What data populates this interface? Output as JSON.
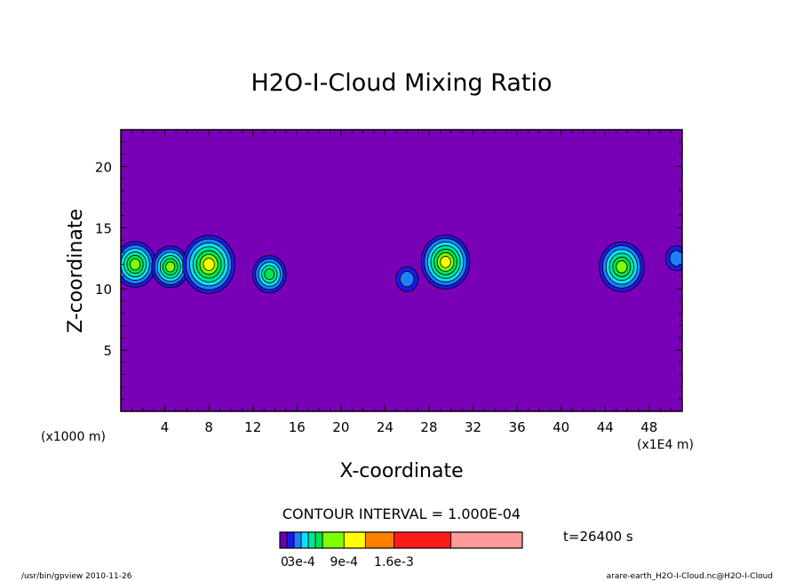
{
  "chart_data": {
    "type": "heatmap",
    "title": "H2O-I-Cloud Mixing Ratio",
    "xlabel": "X-coordinate",
    "ylabel": "Z-coordinate",
    "x_unit_left": "(x1000 m)",
    "x_unit_right": "(x1E4 m)",
    "xlim": [
      0,
      51
    ],
    "ylim": [
      0,
      23
    ],
    "x_ticks": [
      4,
      8,
      12,
      16,
      20,
      24,
      28,
      32,
      36,
      40,
      44,
      48
    ],
    "y_ticks": [
      5,
      10,
      15,
      20
    ],
    "contour_interval": "CONTOUR INTERVAL = 1.000E-04",
    "time_label": "t=26400 s",
    "colorbar_labels": [
      "0",
      "3e-4",
      "9e-4",
      "1.6e-3"
    ],
    "colorbar_colors": [
      "#6a00b8",
      "#1a1ae6",
      "#1f7fff",
      "#00e5ff",
      "#00e59a",
      "#00e550",
      "#7fff00",
      "#ffff00",
      "#ff8000",
      "#ff1a1a",
      "#ff9a9a"
    ],
    "colorbar_bounds": [
      0,
      0.0001,
      0.0002,
      0.0003,
      0.0004,
      0.0005,
      0.0006,
      0.0009,
      0.0012,
      0.0016,
      0.0024,
      0.0034
    ],
    "background_color": "#7a00b8",
    "clouds": [
      {
        "x": 1.3,
        "z": 12.0,
        "peak": 0.0007
      },
      {
        "x": 4.5,
        "z": 11.8,
        "peak": 0.0006
      },
      {
        "x": 8.0,
        "z": 12.0,
        "peak": 0.001
      },
      {
        "x": 13.5,
        "z": 11.2,
        "peak": 0.0005
      },
      {
        "x": 26.0,
        "z": 10.8,
        "peak": 0.0002
      },
      {
        "x": 29.5,
        "z": 12.2,
        "peak": 0.0009
      },
      {
        "x": 45.5,
        "z": 11.8,
        "peak": 0.0008
      },
      {
        "x": 50.5,
        "z": 12.5,
        "peak": 0.0002
      }
    ]
  },
  "footer": {
    "left": "/usr/bin/gpview  2010-11-26",
    "right": "arare-earth_H2O-I-Cloud.nc@H2O-I-Cloud"
  }
}
